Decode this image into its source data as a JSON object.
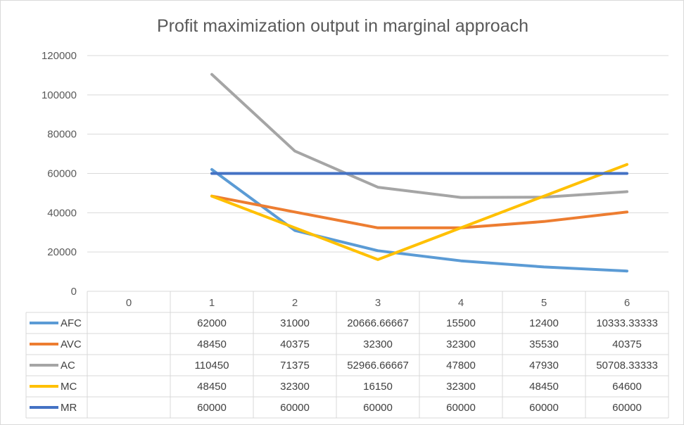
{
  "chart_data": {
    "type": "line",
    "title": "Profit maximization output in marginal approach",
    "categories": [
      "0",
      "1",
      "2",
      "3",
      "4",
      "5",
      "6"
    ],
    "ylim": [
      0,
      120000
    ],
    "yticks": [
      "0",
      "20000",
      "40000",
      "60000",
      "80000",
      "100000",
      "120000"
    ],
    "grid": true,
    "legend": "data table",
    "series": [
      {
        "name": "AFC",
        "color": "#5b9bd5",
        "values": [
          null,
          62000,
          31000,
          20666.66667,
          15500,
          12400,
          10333.33333
        ],
        "labels": [
          "",
          "62000",
          "31000",
          "20666.66667",
          "15500",
          "12400",
          "10333.33333"
        ]
      },
      {
        "name": "AVC",
        "color": "#ed7d31",
        "values": [
          null,
          48450,
          40375,
          32300,
          32300,
          35530,
          40375
        ],
        "labels": [
          "",
          "48450",
          "40375",
          "32300",
          "32300",
          "35530",
          "40375"
        ]
      },
      {
        "name": "AC",
        "color": "#a5a5a5",
        "values": [
          null,
          110450,
          71375,
          52966.66667,
          47800,
          47930,
          50708.33333
        ],
        "labels": [
          "",
          "110450",
          "71375",
          "52966.66667",
          "47800",
          "47930",
          "50708.33333"
        ]
      },
      {
        "name": "MC",
        "color": "#ffc000",
        "values": [
          null,
          48450,
          32300,
          16150,
          32300,
          48450,
          64600
        ],
        "labels": [
          "",
          "48450",
          "32300",
          "16150",
          "32300",
          "48450",
          "64600"
        ]
      },
      {
        "name": "MR",
        "color": "#4472c4",
        "values": [
          null,
          60000,
          60000,
          60000,
          60000,
          60000,
          60000
        ],
        "labels": [
          "",
          "60000",
          "60000",
          "60000",
          "60000",
          "60000",
          "60000"
        ]
      }
    ]
  }
}
